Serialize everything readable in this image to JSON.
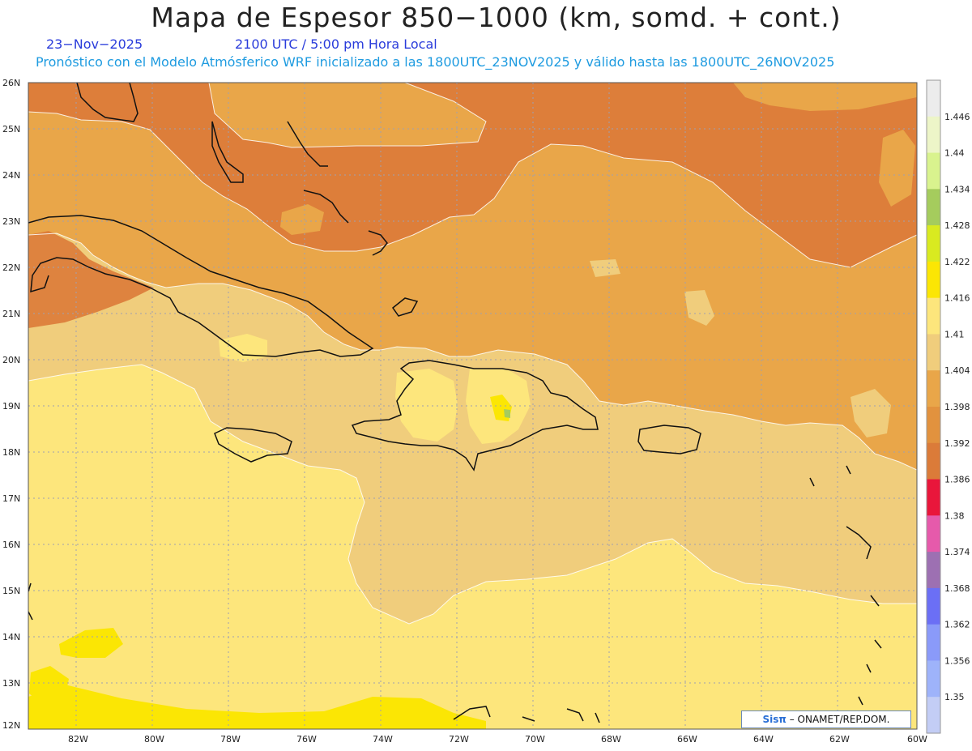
{
  "title": "Mapa de Espesor 850−1000 (km, somd. + cont.)",
  "date": "23−Nov−2025",
  "time": "2100 UTC / 5:00 pm Hora Local",
  "forecast_line": "Pronóstico con el Modelo Atmósferico WRF inicializado a las 1800UTC_23NOV2025 y válido hasta las  1800UTC_26NOV2025",
  "credit": {
    "brand": "Sisπ",
    "text": " – ONAMET/REP.DOM."
  },
  "axes": {
    "lat_labels": [
      "26N",
      "25N",
      "24N",
      "23N",
      "22N",
      "21N",
      "20N",
      "19N",
      "18N",
      "17N",
      "16N",
      "15N",
      "14N",
      "13N",
      "12N"
    ],
    "lon_labels": [
      "82W",
      "80W",
      "78W",
      "76W",
      "74W",
      "72W",
      "70W",
      "68W",
      "66W",
      "64W",
      "62W",
      "60W"
    ],
    "lat_range": [
      12,
      26
    ],
    "lon_range": [
      -83.2,
      -60
    ]
  },
  "colorbar": {
    "levels": [
      "1.35",
      "1.356",
      "1.362",
      "1.368",
      "1.374",
      "1.38",
      "1.386",
      "1.392",
      "1.398",
      "1.404",
      "1.41",
      "1.416",
      "1.422",
      "1.428",
      "1.434",
      "1.44",
      "1.446"
    ],
    "colors": [
      "#c3cdf5",
      "#9eb3fa",
      "#8a9af9",
      "#6b6ff5",
      "#9d70b2",
      "#e65aab",
      "#e9163b",
      "#db7b39",
      "#e2923e",
      "#e9a649",
      "#f0cd7c",
      "#fde67c",
      "#fbe604",
      "#d9ea20",
      "#a5cc5d",
      "#d9f38e",
      "#edf5c8",
      "#ececec"
    ],
    "zones": {
      "1.386-1.392": "#db7b39",
      "1.392-1.398": "#e2923e",
      "1.398-1.404": "#e9a649",
      "1.404-1.41": "#f0cd7c",
      "1.41-1.416": "#fde67c",
      "1.416-1.422": "#fbe604",
      "1.428-1.434": "#a5cc5d"
    }
  },
  "map_style": {
    "grid": "dotted gray",
    "coastline_color": "#111111",
    "contour_color": "#ffffff"
  }
}
